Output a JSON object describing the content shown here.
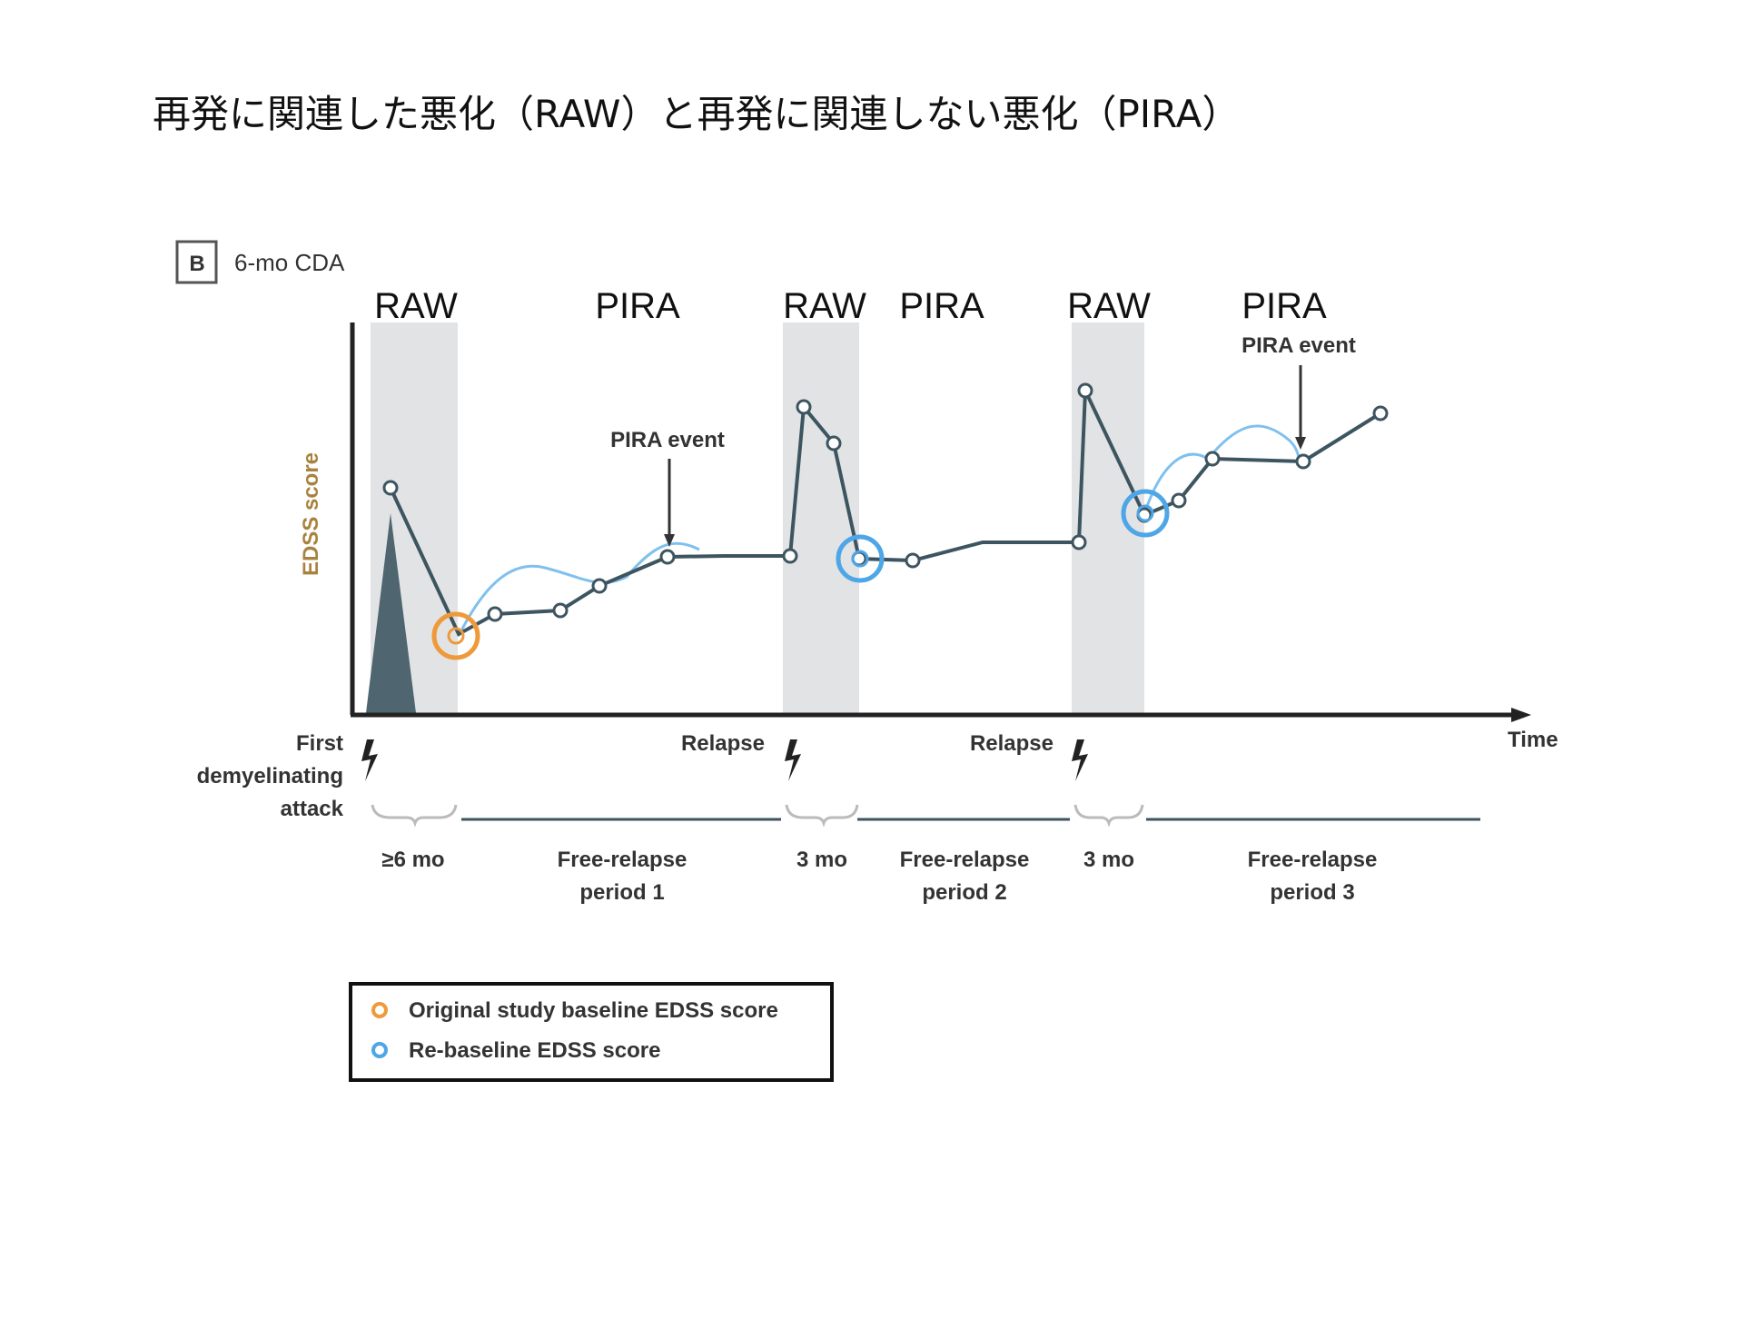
{
  "title": "再発に関連した悪化（RAW）と再発に関連しない悪化（PIRA）",
  "panel": {
    "badge": "B",
    "label": "6-mo CDA"
  },
  "regions": [
    "RAW",
    "PIRA",
    "RAW",
    "PIRA",
    "RAW",
    "PIRA"
  ],
  "axes": {
    "ylabel": "EDSS score",
    "xlabel": "Time"
  },
  "annotations": {
    "pira_event_1": "PIRA event",
    "pira_event_2": "PIRA event"
  },
  "events": {
    "first_attack": [
      "First",
      "demyelinating",
      "attack"
    ],
    "relapse_1": "Relapse",
    "relapse_2": "Relapse"
  },
  "periods": {
    "p1": "≥6 mo",
    "p2": [
      "Free-relapse",
      "period 1"
    ],
    "p3": "3 mo",
    "p4": [
      "Free-relapse",
      "period 2"
    ],
    "p5": "3 mo",
    "p6": [
      "Free-relapse",
      "period 3"
    ]
  },
  "legend": {
    "original": "Original study baseline EDSS score",
    "rebaseline": "Re-baseline EDSS score"
  },
  "colors": {
    "line": "#3d5560",
    "shade": "#e2e3e5",
    "orange": "#ee9a3a",
    "blue": "#4ea6e6",
    "thin_blue": "#7fc0ee"
  }
}
